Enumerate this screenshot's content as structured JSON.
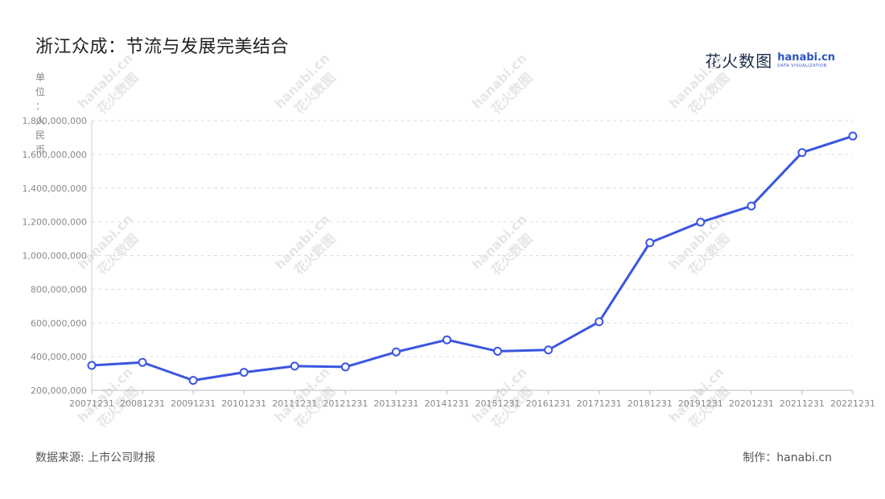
{
  "title": "浙江众成：节流与发展完美结合",
  "logo": {
    "cn": "花火数图",
    "en": "hanabi.cn",
    "sub": "DATA VISUALIZATION"
  },
  "watermark": {
    "cn": "花火数图",
    "en": "hanabi.cn"
  },
  "footer": {
    "source": "数据来源: 上市公司财报",
    "maker": "制作：hanabi.cn"
  },
  "colors": {
    "line": "#3a55e0",
    "grid": "#dddddd",
    "axis_text": "#888888"
  },
  "chart_data": {
    "type": "line",
    "ylabel": "单位：人民币",
    "ylim": [
      200000000,
      1800000000
    ],
    "yticks": [
      200000000,
      400000000,
      600000000,
      800000000,
      1000000000,
      1200000000,
      1400000000,
      1600000000,
      1800000000
    ],
    "ytick_labels": [
      "200,000,000",
      "400,000,000",
      "600,000,000",
      "800,000,000",
      "1,000,000,000",
      "1,200,000,000",
      "1,400,000,000",
      "1,600,000,000",
      "1,800,000,000"
    ],
    "categories": [
      "20071231",
      "20081231",
      "20091231",
      "20101231",
      "20111231",
      "20121231",
      "20131231",
      "20141231",
      "20151231",
      "20161231",
      "20171231",
      "20181231",
      "20191231",
      "20201231",
      "20211231",
      "20221231"
    ],
    "series": [
      {
        "values": [
          348000000,
          366000000,
          259000000,
          307000000,
          344000000,
          339000000,
          428000000,
          500000000,
          432000000,
          440000000,
          607000000,
          1076000000,
          1198000000,
          1294000000,
          1611000000,
          1709000000
        ]
      }
    ],
    "grid": true
  }
}
